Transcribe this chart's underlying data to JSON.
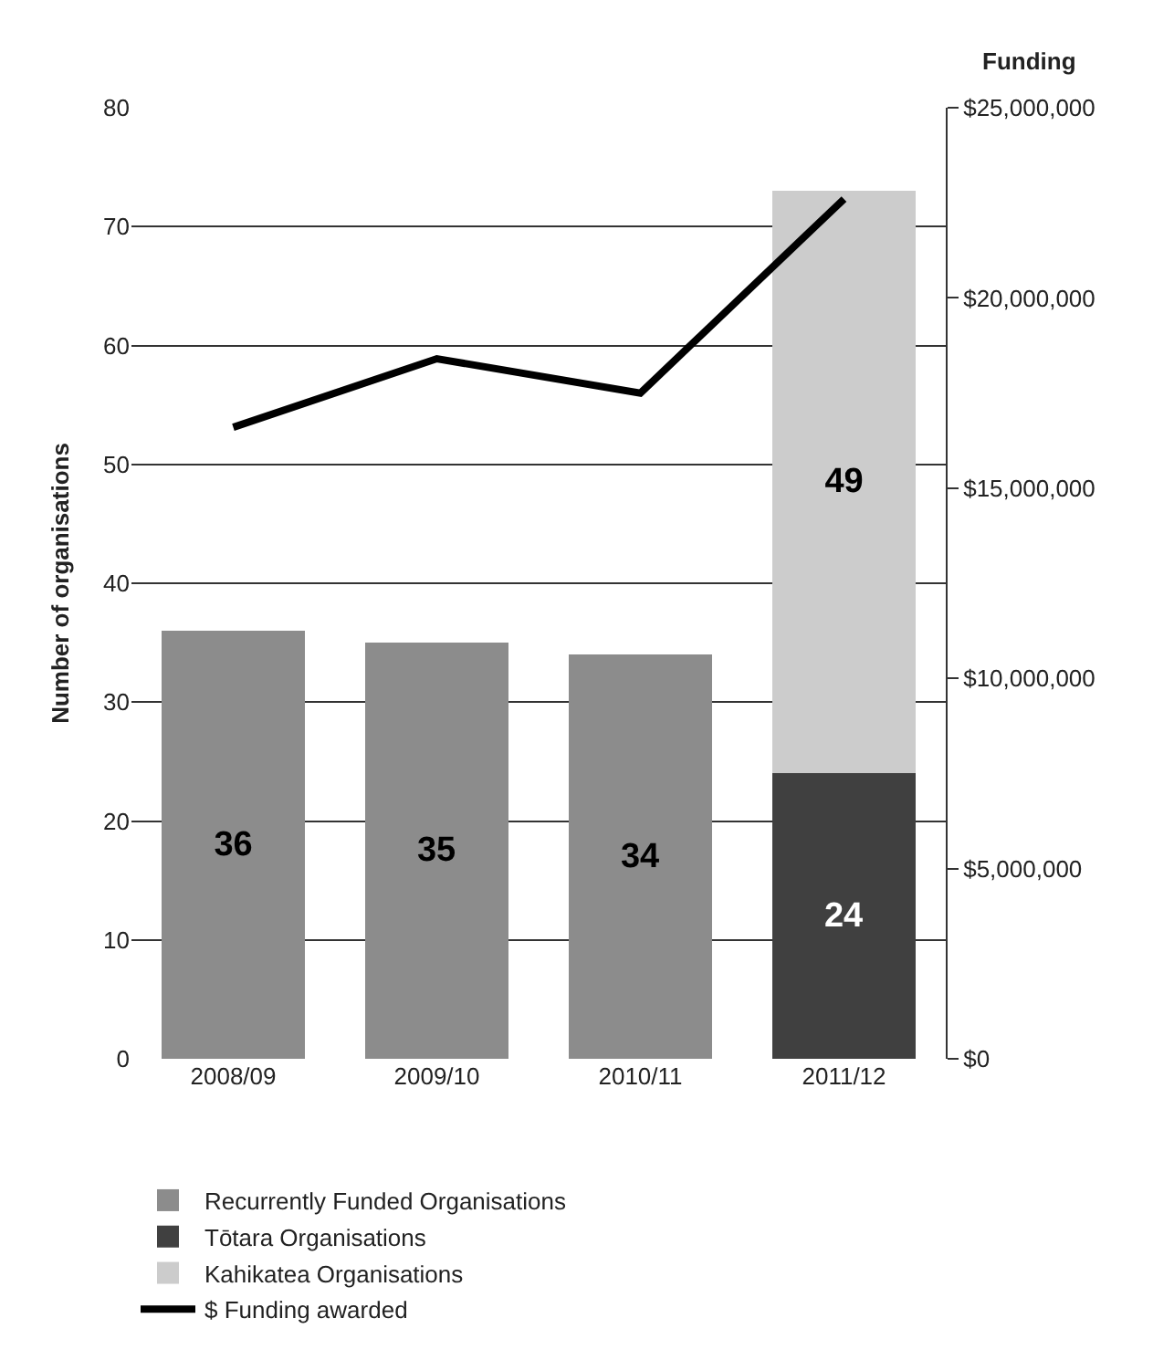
{
  "chart_data": {
    "type": "bar",
    "stacked": true,
    "ylabel": "Number of organisations",
    "y2label": "Funding",
    "categories": [
      "2008/09",
      "2009/10",
      "2010/11",
      "2011/12"
    ],
    "series": [
      {
        "name": "Recurrently Funded Organisations",
        "color": "#8c8c8c",
        "values": [
          36,
          35,
          34,
          null
        ],
        "value_labels": [
          "36",
          "35",
          "34",
          null
        ]
      },
      {
        "name": "Tōtara Organisations",
        "color": "#404040",
        "values": [
          null,
          null,
          null,
          24
        ],
        "value_labels": [
          null,
          null,
          null,
          "24"
        ]
      },
      {
        "name": "Kahikatea Organisations",
        "color": "#cccccc",
        "values": [
          null,
          null,
          null,
          49
        ],
        "value_labels": [
          null,
          null,
          null,
          "49"
        ]
      },
      {
        "name": "$ Funding awarded",
        "type": "line",
        "axis": "y2",
        "color": "#000000",
        "values": [
          16600000,
          18400000,
          17500000,
          22600000
        ]
      }
    ],
    "ylim": [
      0,
      80
    ],
    "yticks": [
      0,
      10,
      20,
      30,
      40,
      50,
      60,
      70,
      80
    ],
    "y2lim": [
      0,
      25000000
    ],
    "y2ticks": [
      {
        "value": 0,
        "label": "$0"
      },
      {
        "value": 5000000,
        "label": "$5,000,000"
      },
      {
        "value": 10000000,
        "label": "$10,000,000"
      },
      {
        "value": 15000000,
        "label": "$15,000,000"
      },
      {
        "value": 20000000,
        "label": "$20,000,000"
      },
      {
        "value": 25000000,
        "label": "$25,000,000"
      }
    ],
    "grid": "y",
    "legend": "bottom",
    "marker": "none",
    "line_style": "solid"
  }
}
